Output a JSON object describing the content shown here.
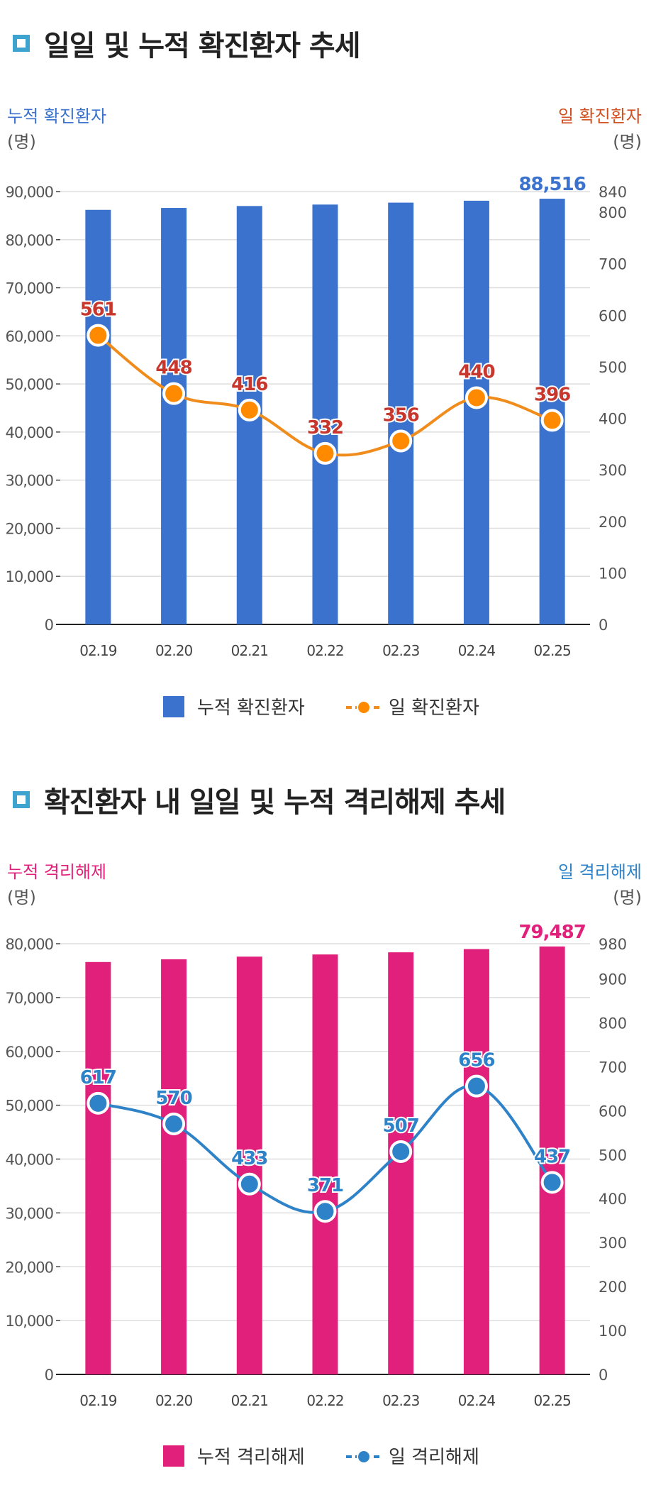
{
  "charts": [
    {
      "title": "일일 및 누적 확진환자 추세",
      "accent": "#3a72cd",
      "line_color": "#f08c1c",
      "marker_fill": "#ff8a00",
      "label_color": "#c8372d",
      "last_label_color": "#3a72cd",
      "left_title": "누적 확진환자",
      "left_title_color": "#3a72cd",
      "right_title": "일 확진환자",
      "right_title_color": "#d0501f",
      "unit": "(명)",
      "legend_bar": "누적 확진환자",
      "legend_line": "일 확진환자",
      "chart_data": {
        "type": "bar+line",
        "categories": [
          "02.19",
          "02.20",
          "02.21",
          "02.22",
          "02.23",
          "02.24",
          "02.25"
        ],
        "series": [
          {
            "name": "누적 확진환자",
            "type": "bar",
            "axis": "left",
            "values": [
              86200,
              86600,
              87000,
              87300,
              87700,
              88100,
              88516
            ]
          },
          {
            "name": "일 확진환자",
            "type": "line",
            "axis": "right",
            "values": [
              561,
              448,
              416,
              332,
              356,
              440,
              396
            ]
          }
        ],
        "left_ylim": [
          0,
          90000
        ],
        "left_ticks": [
          "0",
          "10,000",
          "20,000",
          "30,000",
          "40,000",
          "50,000",
          "60,000",
          "70,000",
          "80,000",
          "90,000"
        ],
        "right_ylim": [
          0,
          840
        ],
        "right_ticks": [
          "0",
          "100",
          "200",
          "300",
          "400",
          "500",
          "600",
          "700",
          "800",
          "840"
        ],
        "last_bar_label": "88,516",
        "line_labels": [
          "561",
          "448",
          "416",
          "332",
          "356",
          "440",
          "396"
        ]
      }
    },
    {
      "title": "확진환자 내 일일 및 누적 격리해제 추세",
      "accent": "#e0207a",
      "line_color": "#2e82c8",
      "marker_fill": "#2e82c8",
      "label_color": "#2e82c8",
      "last_label_color": "#e0207a",
      "left_title": "누적 격리해제",
      "left_title_color": "#e0207a",
      "right_title": "일 격리해제",
      "right_title_color": "#2e82c8",
      "unit": "(명)",
      "legend_bar": "누적 격리해제",
      "legend_line": "일 격리해제",
      "chart_data": {
        "type": "bar+line",
        "categories": [
          "02.19",
          "02.20",
          "02.21",
          "02.22",
          "02.23",
          "02.24",
          "02.25"
        ],
        "series": [
          {
            "name": "누적 격리해제",
            "type": "bar",
            "axis": "left",
            "values": [
              76600,
              77100,
              77600,
              78000,
              78400,
              79000,
              79487
            ]
          },
          {
            "name": "일 격리해제",
            "type": "line",
            "axis": "right",
            "values": [
              617,
              570,
              433,
              371,
              507,
              656,
              437
            ]
          }
        ],
        "left_ylim": [
          0,
          80000
        ],
        "left_ticks": [
          "0",
          "10,000",
          "20,000",
          "30,000",
          "40,000",
          "50,000",
          "60,000",
          "70,000",
          "80,000"
        ],
        "right_ylim": [
          0,
          980
        ],
        "right_ticks": [
          "0",
          "100",
          "200",
          "300",
          "400",
          "500",
          "600",
          "700",
          "800",
          "900",
          "980"
        ],
        "last_bar_label": "79,487",
        "line_labels": [
          "617",
          "570",
          "433",
          "371",
          "507",
          "656",
          "437"
        ]
      }
    }
  ]
}
